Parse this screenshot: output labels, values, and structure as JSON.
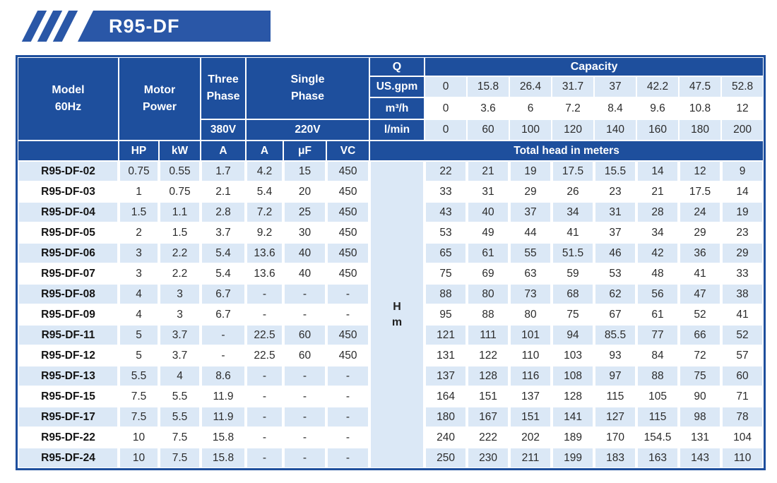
{
  "banner": {
    "title": "R95-DF"
  },
  "colors": {
    "header_blue": "#1e4f9d",
    "banner_blue": "#2a57a7",
    "alt_row_blue": "#dbe8f6",
    "border_blue": "#1e4f9d",
    "header_text": "#ffffff",
    "body_text": "#2b2b2b"
  },
  "table": {
    "header": {
      "model_line1": "Model",
      "model_line2": "60Hz",
      "motor_line1": "Motor",
      "motor_line2": "Power",
      "three_phase_line1": "Three",
      "three_phase_line2": "Phase",
      "single_phase_line1": "Single",
      "single_phase_line2": "Phase",
      "v380": "380V",
      "v220": "220V",
      "q": "Q",
      "capacity": "Capacity",
      "us_gpm": "US.gpm",
      "m3h": "m³/h",
      "lmin": "l/min",
      "hp": "HP",
      "kw": "kW",
      "a_380": "A",
      "a_220": "A",
      "uf": "μF",
      "vc": "VC",
      "total_head": "Total head in meters",
      "h_unit_line1": "H",
      "h_unit_line2": "m"
    },
    "capacity": {
      "us_gpm": [
        "0",
        "15.8",
        "26.4",
        "31.7",
        "37",
        "42.2",
        "47.5",
        "52.8"
      ],
      "m3h": [
        "0",
        "3.6",
        "6",
        "7.2",
        "8.4",
        "9.6",
        "10.8",
        "12"
      ],
      "lmin": [
        "0",
        "60",
        "100",
        "120",
        "140",
        "160",
        "180",
        "200"
      ]
    },
    "rows": [
      {
        "model": "R95-DF-02",
        "hp": "0.75",
        "kw": "0.55",
        "a380": "1.7",
        "a220": "4.2",
        "uf": "15",
        "vc": "450",
        "head": [
          "22",
          "21",
          "19",
          "17.5",
          "15.5",
          "14",
          "12",
          "9"
        ]
      },
      {
        "model": "R95-DF-03",
        "hp": "1",
        "kw": "0.75",
        "a380": "2.1",
        "a220": "5.4",
        "uf": "20",
        "vc": "450",
        "head": [
          "33",
          "31",
          "29",
          "26",
          "23",
          "21",
          "17.5",
          "14"
        ]
      },
      {
        "model": "R95-DF-04",
        "hp": "1.5",
        "kw": "1.1",
        "a380": "2.8",
        "a220": "7.2",
        "uf": "25",
        "vc": "450",
        "head": [
          "43",
          "40",
          "37",
          "34",
          "31",
          "28",
          "24",
          "19"
        ]
      },
      {
        "model": "R95-DF-05",
        "hp": "2",
        "kw": "1.5",
        "a380": "3.7",
        "a220": "9.2",
        "uf": "30",
        "vc": "450",
        "head": [
          "53",
          "49",
          "44",
          "41",
          "37",
          "34",
          "29",
          "23"
        ]
      },
      {
        "model": "R95-DF-06",
        "hp": "3",
        "kw": "2.2",
        "a380": "5.4",
        "a220": "13.6",
        "uf": "40",
        "vc": "450",
        "head": [
          "65",
          "61",
          "55",
          "51.5",
          "46",
          "42",
          "36",
          "29"
        ]
      },
      {
        "model": "R95-DF-07",
        "hp": "3",
        "kw": "2.2",
        "a380": "5.4",
        "a220": "13.6",
        "uf": "40",
        "vc": "450",
        "head": [
          "75",
          "69",
          "63",
          "59",
          "53",
          "48",
          "41",
          "33"
        ]
      },
      {
        "model": "R95-DF-08",
        "hp": "4",
        "kw": "3",
        "a380": "6.7",
        "a220": "-",
        "uf": "-",
        "vc": "-",
        "head": [
          "88",
          "80",
          "73",
          "68",
          "62",
          "56",
          "47",
          "38"
        ]
      },
      {
        "model": "R95-DF-09",
        "hp": "4",
        "kw": "3",
        "a380": "6.7",
        "a220": "-",
        "uf": "-",
        "vc": "-",
        "head": [
          "95",
          "88",
          "80",
          "75",
          "67",
          "61",
          "52",
          "41"
        ]
      },
      {
        "model": "R95-DF-11",
        "hp": "5",
        "kw": "3.7",
        "a380": "-",
        "a220": "22.5",
        "uf": "60",
        "vc": "450",
        "head": [
          "121",
          "111",
          "101",
          "94",
          "85.5",
          "77",
          "66",
          "52"
        ]
      },
      {
        "model": "R95-DF-12",
        "hp": "5",
        "kw": "3.7",
        "a380": "-",
        "a220": "22.5",
        "uf": "60",
        "vc": "450",
        "head": [
          "131",
          "122",
          "110",
          "103",
          "93",
          "84",
          "72",
          "57"
        ]
      },
      {
        "model": "R95-DF-13",
        "hp": "5.5",
        "kw": "4",
        "a380": "8.6",
        "a220": "-",
        "uf": "-",
        "vc": "-",
        "head": [
          "137",
          "128",
          "116",
          "108",
          "97",
          "88",
          "75",
          "60"
        ]
      },
      {
        "model": "R95-DF-15",
        "hp": "7.5",
        "kw": "5.5",
        "a380": "11.9",
        "a220": "-",
        "uf": "-",
        "vc": "-",
        "head": [
          "164",
          "151",
          "137",
          "128",
          "115",
          "105",
          "90",
          "71"
        ]
      },
      {
        "model": "R95-DF-17",
        "hp": "7.5",
        "kw": "5.5",
        "a380": "11.9",
        "a220": "-",
        "uf": "-",
        "vc": "-",
        "head": [
          "180",
          "167",
          "151",
          "141",
          "127",
          "115",
          "98",
          "78"
        ]
      },
      {
        "model": "R95-DF-22",
        "hp": "10",
        "kw": "7.5",
        "a380": "15.8",
        "a220": "-",
        "uf": "-",
        "vc": "-",
        "head": [
          "240",
          "222",
          "202",
          "189",
          "170",
          "154.5",
          "131",
          "104"
        ]
      },
      {
        "model": "R95-DF-24",
        "hp": "10",
        "kw": "7.5",
        "a380": "15.8",
        "a220": "-",
        "uf": "-",
        "vc": "-",
        "head": [
          "250",
          "230",
          "211",
          "199",
          "183",
          "163",
          "143",
          "110"
        ]
      }
    ]
  }
}
